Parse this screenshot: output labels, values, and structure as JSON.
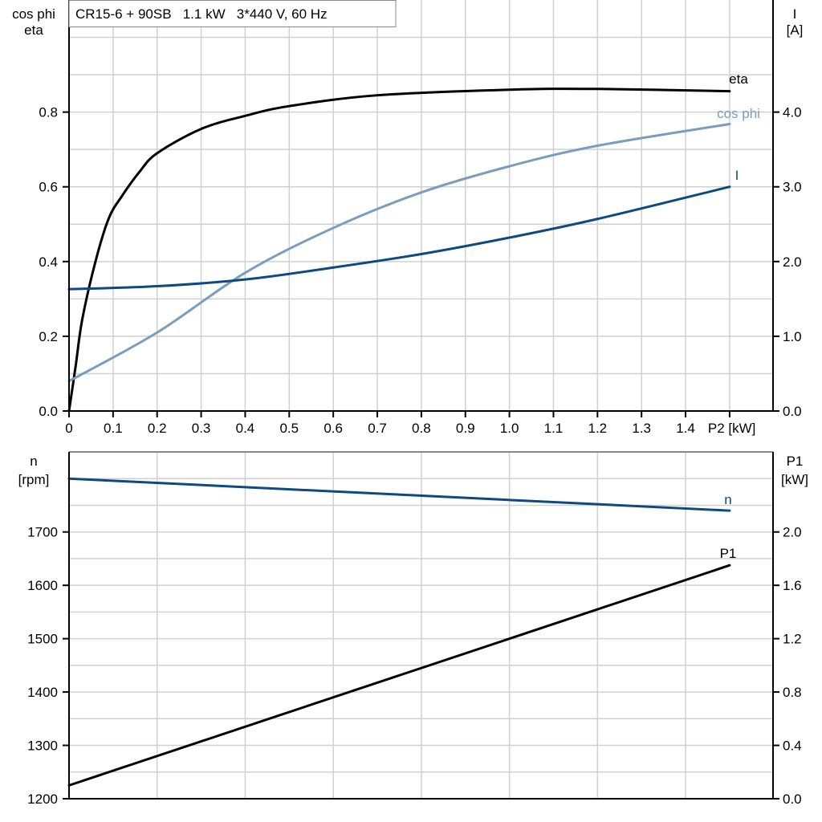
{
  "title": "CR15-6 + 90SB   1.1 kW   3*440 V, 60 Hz",
  "colors": {
    "eta": "#000000",
    "cos_phi": "#7a9dbd",
    "I": "#0e4a80",
    "n": "#0e4a80",
    "P1": "#000000",
    "grid": "#d0d0d0"
  },
  "chart_data": [
    {
      "type": "line",
      "left_axis_label": [
        "cos phi",
        "eta"
      ],
      "right_axis_label": [
        "I",
        "[A]"
      ],
      "xlabel": "P2 [kW]",
      "x_ticks": [
        "0",
        "0.1",
        "0.2",
        "0.3",
        "0.4",
        "0.5",
        "0.6",
        "0.7",
        "0.8",
        "0.9",
        "1.0",
        "1.1",
        "1.2",
        "1.3",
        "1.4"
      ],
      "y_ticks": [
        "0.0",
        "0.2",
        "0.4",
        "0.6",
        "0.8"
      ],
      "y2_ticks": [
        "0.0",
        "1.0",
        "2.0",
        "3.0",
        "4.0"
      ],
      "xlim": [
        0,
        1.6
      ],
      "ylim": [
        0,
        1.1
      ],
      "y2lim": [
        0,
        5.5
      ],
      "grid": true,
      "series": [
        {
          "name": "eta",
          "axis": "left",
          "x": [
            0,
            0.015,
            0.03,
            0.06,
            0.09,
            0.12,
            0.16,
            0.2,
            0.3,
            0.4,
            0.5,
            0.7,
            1.0,
            1.2,
            1.5
          ],
          "y": [
            0,
            0.12,
            0.245,
            0.4,
            0.515,
            0.575,
            0.64,
            0.69,
            0.755,
            0.79,
            0.816,
            0.845,
            0.86,
            0.862,
            0.856
          ]
        },
        {
          "name": "cos phi",
          "axis": "left",
          "x": [
            0,
            0.2,
            0.4,
            0.6,
            0.8,
            1.0,
            1.2,
            1.5
          ],
          "y": [
            0.08,
            0.21,
            0.37,
            0.49,
            0.585,
            0.655,
            0.71,
            0.768
          ]
        },
        {
          "name": "I",
          "axis": "right",
          "x": [
            0,
            0.2,
            0.4,
            0.6,
            0.8,
            1.0,
            1.2,
            1.5
          ],
          "y": [
            1.63,
            1.67,
            1.76,
            1.92,
            2.1,
            2.32,
            2.57,
            3.0
          ]
        }
      ]
    },
    {
      "type": "line",
      "left_axis_label": [
        "n",
        "[rpm]"
      ],
      "right_axis_label": [
        "P1",
        "[kW]"
      ],
      "y_ticks": [
        "1200",
        "1300",
        "1400",
        "1500",
        "1600",
        "1700"
      ],
      "y2_ticks": [
        "0.0",
        "0.4",
        "0.8",
        "1.2",
        "1.6",
        "2.0"
      ],
      "xlim": [
        0,
        1.6
      ],
      "ylim": [
        1200,
        1850
      ],
      "y2lim": [
        0,
        2.6
      ],
      "grid": true,
      "series": [
        {
          "name": "n",
          "axis": "left",
          "x": [
            0,
            1.5
          ],
          "y": [
            1800,
            1740
          ]
        },
        {
          "name": "P1",
          "axis": "right",
          "x": [
            0,
            1.5
          ],
          "y": [
            0.1,
            1.75
          ]
        }
      ]
    }
  ]
}
